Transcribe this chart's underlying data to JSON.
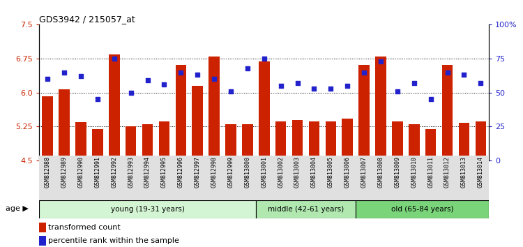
{
  "title": "GDS3942 / 215057_at",
  "samples": [
    "GSM812988",
    "GSM812989",
    "GSM812990",
    "GSM812991",
    "GSM812992",
    "GSM812993",
    "GSM812994",
    "GSM812995",
    "GSM812996",
    "GSM812997",
    "GSM812998",
    "GSM812999",
    "GSM813000",
    "GSM813001",
    "GSM813002",
    "GSM813003",
    "GSM813004",
    "GSM813005",
    "GSM813006",
    "GSM813007",
    "GSM813008",
    "GSM813009",
    "GSM813010",
    "GSM813011",
    "GSM813012",
    "GSM813013",
    "GSM813014"
  ],
  "bar_values": [
    5.92,
    6.07,
    5.35,
    5.19,
    6.85,
    5.25,
    5.3,
    5.37,
    6.62,
    6.15,
    6.79,
    5.3,
    5.31,
    6.69,
    5.37,
    5.4,
    5.37,
    5.37,
    5.42,
    6.62,
    6.8,
    5.37,
    5.31,
    5.19,
    6.62,
    5.33,
    5.37
  ],
  "percentile_values": [
    60,
    65,
    62,
    45,
    75,
    50,
    59,
    56,
    65,
    63,
    60,
    51,
    68,
    75,
    55,
    57,
    53,
    53,
    55,
    65,
    73,
    51,
    57,
    45,
    65,
    63,
    57
  ],
  "groups": [
    {
      "label": "young (19-31 years)",
      "start": 0,
      "end": 13,
      "color": "#d4f5d4"
    },
    {
      "label": "middle (42-61 years)",
      "start": 13,
      "end": 19,
      "color": "#b0e8b0"
    },
    {
      "label": "old (65-84 years)",
      "start": 19,
      "end": 27,
      "color": "#7ad47a"
    }
  ],
  "ylim_left": [
    4.5,
    7.5
  ],
  "ylim_right": [
    0,
    100
  ],
  "yticks_left": [
    4.5,
    5.25,
    6.0,
    6.75,
    7.5
  ],
  "yticks_right": [
    0,
    25,
    50,
    75,
    100
  ],
  "ytick_labels_right": [
    "0",
    "25",
    "50",
    "75",
    "100%"
  ],
  "bar_color": "#cc2200",
  "dot_color": "#2222cc",
  "age_label": "age",
  "legend_bar": "transformed count",
  "legend_dot": "percentile rank within the sample"
}
